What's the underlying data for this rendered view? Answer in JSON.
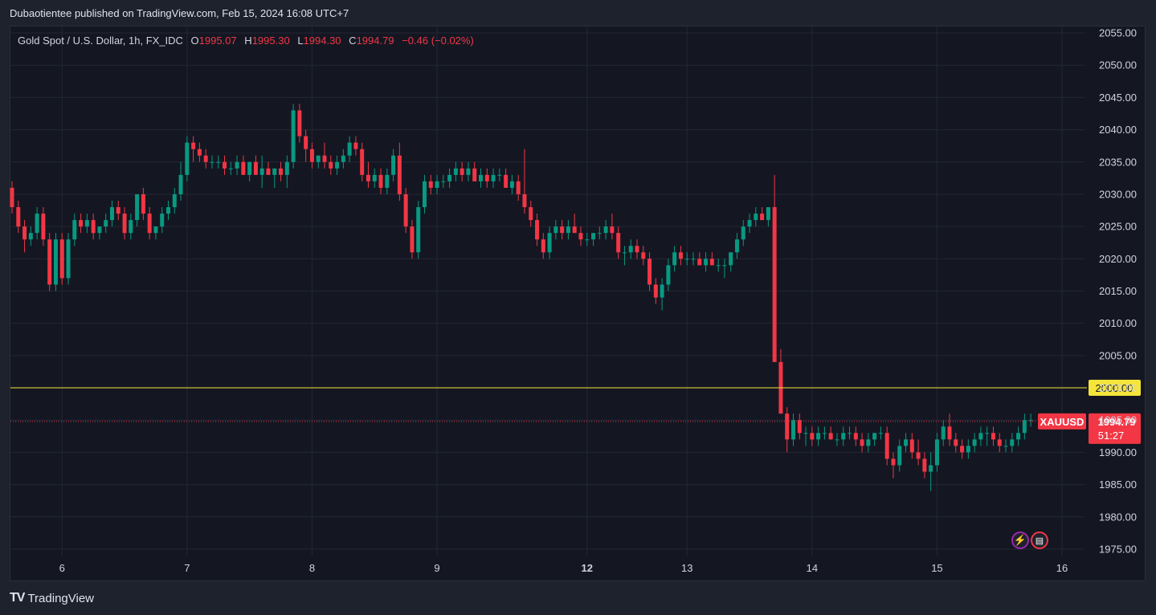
{
  "header": {
    "published_text": "Dubaotientee published on TradingView.com, Feb 15, 2024 16:08 UTC+7"
  },
  "legend": {
    "symbol": "Gold Spot / U.S. Dollar, 1h, FX_IDC",
    "o_label": "O",
    "o_value": "1995.07",
    "h_label": "H",
    "h_value": "1995.30",
    "l_label": "L",
    "l_value": "1994.30",
    "c_label": "C",
    "c_value": "1994.79",
    "change": "−0.46 (−0.02%)"
  },
  "footer": {
    "brand": "TradingView",
    "logo": "TV"
  },
  "icons": [
    "lightning-icon",
    "us-flag-icon"
  ],
  "colors": {
    "up": "#089981",
    "down": "#f23645",
    "level_line": "#f5e43a",
    "background": "#141722"
  },
  "chart_data": {
    "type": "candlestick",
    "symbol": "XAUUSD",
    "timeframe": "1h",
    "ylim": [
      1974,
      2056
    ],
    "y_ticks": [
      "2055.00",
      "2050.00",
      "2045.00",
      "2040.00",
      "2035.00",
      "2030.00",
      "2025.00",
      "2020.00",
      "2015.00",
      "2010.00",
      "2005.00",
      "2000.00",
      "1995.00",
      "1990.00",
      "1985.00",
      "1980.00",
      "1975.00"
    ],
    "x_ticks": [
      {
        "label": "6",
        "bar": 8,
        "bold": false
      },
      {
        "label": "7",
        "bar": 28,
        "bold": false
      },
      {
        "label": "8",
        "bar": 48,
        "bold": false
      },
      {
        "label": "9",
        "bar": 68,
        "bold": false
      },
      {
        "label": "12",
        "bar": 92,
        "bold": true
      },
      {
        "label": "13",
        "bar": 108,
        "bold": false
      },
      {
        "label": "14",
        "bar": 128,
        "bold": false
      },
      {
        "label": "15",
        "bar": 148,
        "bold": false
      },
      {
        "label": "16",
        "bar": 168,
        "bold": false
      }
    ],
    "horizontal_line": {
      "value": 2000.0,
      "label": "2000.00"
    },
    "last_price": {
      "value": 1994.79,
      "label": "1994.79",
      "countdown": "51:27",
      "symbol_label": "XAUUSD"
    },
    "candles": [
      [
        2031,
        2032,
        2027,
        2028
      ],
      [
        2028,
        2029,
        2024,
        2025
      ],
      [
        2025,
        2026,
        2021,
        2023
      ],
      [
        2023,
        2025,
        2022,
        2024
      ],
      [
        2024,
        2028,
        2023,
        2027
      ],
      [
        2027,
        2028,
        2022,
        2023
      ],
      [
        2023,
        2024,
        2015,
        2016
      ],
      [
        2016,
        2024,
        2015,
        2023
      ],
      [
        2023,
        2024,
        2016,
        2017
      ],
      [
        2017,
        2024,
        2016,
        2023
      ],
      [
        2023,
        2027,
        2022,
        2026
      ],
      [
        2026,
        2027,
        2024,
        2025
      ],
      [
        2025,
        2027,
        2024,
        2026
      ],
      [
        2026,
        2027,
        2023,
        2024
      ],
      [
        2024,
        2025,
        2023,
        2025
      ],
      [
        2025,
        2027,
        2024,
        2026
      ],
      [
        2026,
        2029,
        2025,
        2028
      ],
      [
        2028,
        2029,
        2026,
        2027
      ],
      [
        2027,
        2028,
        2023,
        2024
      ],
      [
        2024,
        2027,
        2023,
        2026
      ],
      [
        2026,
        2030,
        2025,
        2030
      ],
      [
        2030,
        2031,
        2026,
        2027
      ],
      [
        2027,
        2028,
        2023,
        2024
      ],
      [
        2024,
        2025,
        2023,
        2025
      ],
      [
        2025,
        2028,
        2024,
        2027
      ],
      [
        2027,
        2029,
        2026,
        2028
      ],
      [
        2028,
        2031,
        2027,
        2030
      ],
      [
        2030,
        2035,
        2029,
        2033
      ],
      [
        2033,
        2039,
        2032,
        2038
      ],
      [
        2038,
        2039,
        2035,
        2037
      ],
      [
        2037,
        2038,
        2035,
        2036
      ],
      [
        2036,
        2037,
        2034,
        2035
      ],
      [
        2035,
        2036,
        2034,
        2035
      ],
      [
        2035,
        2036,
        2034,
        2035
      ],
      [
        2035,
        2036,
        2033,
        2034
      ],
      [
        2034,
        2035,
        2033,
        2034
      ],
      [
        2034,
        2036,
        2033,
        2035
      ],
      [
        2035,
        2036,
        2033,
        2033
      ],
      [
        2033,
        2035,
        2032,
        2035
      ],
      [
        2035,
        2036,
        2033,
        2033
      ],
      [
        2033,
        2036,
        2031,
        2034
      ],
      [
        2034,
        2035,
        2033,
        2033
      ],
      [
        2033,
        2034,
        2031,
        2034
      ],
      [
        2034,
        2035,
        2032,
        2033
      ],
      [
        2033,
        2036,
        2031,
        2035
      ],
      [
        2035,
        2044,
        2034,
        2043
      ],
      [
        2043,
        2044,
        2038,
        2039
      ],
      [
        2039,
        2040,
        2035,
        2037
      ],
      [
        2037,
        2038,
        2034,
        2035
      ],
      [
        2035,
        2036,
        2034,
        2036
      ],
      [
        2036,
        2038,
        2034,
        2035
      ],
      [
        2035,
        2036,
        2033,
        2034
      ],
      [
        2034,
        2036,
        2033,
        2035
      ],
      [
        2035,
        2037,
        2034,
        2036
      ],
      [
        2036,
        2039,
        2035,
        2038
      ],
      [
        2038,
        2039,
        2036,
        2037
      ],
      [
        2037,
        2038,
        2032,
        2033
      ],
      [
        2033,
        2035,
        2031,
        2032
      ],
      [
        2032,
        2034,
        2031,
        2033
      ],
      [
        2033,
        2034,
        2030,
        2031
      ],
      [
        2031,
        2034,
        2030,
        2033
      ],
      [
        2033,
        2037,
        2032,
        2036
      ],
      [
        2036,
        2038,
        2029,
        2030
      ],
      [
        2030,
        2031,
        2024,
        2025
      ],
      [
        2025,
        2026,
        2020,
        2021
      ],
      [
        2021,
        2029,
        2020,
        2028
      ],
      [
        2028,
        2033,
        2027,
        2032
      ],
      [
        2032,
        2033,
        2030,
        2031
      ],
      [
        2031,
        2033,
        2030,
        2032
      ],
      [
        2032,
        2033,
        2031,
        2032
      ],
      [
        2032,
        2034,
        2031,
        2033
      ],
      [
        2033,
        2035,
        2032,
        2034
      ],
      [
        2034,
        2035,
        2032,
        2033
      ],
      [
        2033,
        2035,
        2032,
        2034
      ],
      [
        2034,
        2035,
        2032,
        2032
      ],
      [
        2032,
        2034,
        2031,
        2033
      ],
      [
        2033,
        2034,
        2031,
        2032
      ],
      [
        2032,
        2034,
        2031,
        2033
      ],
      [
        2033,
        2034,
        2032,
        2033
      ],
      [
        2033,
        2034,
        2031,
        2031
      ],
      [
        2031,
        2033,
        2030,
        2032
      ],
      [
        2032,
        2033,
        2029,
        2030
      ],
      [
        2030,
        2037,
        2027,
        2028
      ],
      [
        2028,
        2029,
        2025,
        2026
      ],
      [
        2026,
        2027,
        2022,
        2023
      ],
      [
        2023,
        2024,
        2020,
        2021
      ],
      [
        2021,
        2025,
        2020,
        2024
      ],
      [
        2024,
        2026,
        2023,
        2025
      ],
      [
        2025,
        2026,
        2023,
        2024
      ],
      [
        2024,
        2026,
        2023,
        2025
      ],
      [
        2025,
        2027,
        2024,
        2024
      ],
      [
        2024,
        2025,
        2022,
        2023
      ],
      [
        2023,
        2024,
        2022,
        2023
      ],
      [
        2023,
        2024,
        2022,
        2024
      ],
      [
        2024,
        2025,
        2023,
        2024
      ],
      [
        2024,
        2026,
        2023,
        2025
      ],
      [
        2025,
        2027,
        2023,
        2024
      ],
      [
        2024,
        2025,
        2020,
        2021
      ],
      [
        2021,
        2022,
        2019,
        2021
      ],
      [
        2021,
        2023,
        2020,
        2022
      ],
      [
        2022,
        2023,
        2020,
        2021
      ],
      [
        2021,
        2022,
        2019,
        2020
      ],
      [
        2020,
        2021,
        2015,
        2016
      ],
      [
        2016,
        2017,
        2013,
        2014
      ],
      [
        2014,
        2017,
        2012,
        2016
      ],
      [
        2016,
        2020,
        2015,
        2019
      ],
      [
        2019,
        2022,
        2018,
        2021
      ],
      [
        2021,
        2022,
        2019,
        2020
      ],
      [
        2020,
        2021,
        2019,
        2020
      ],
      [
        2020,
        2021,
        2019,
        2020
      ],
      [
        2020,
        2021,
        2019,
        2019
      ],
      [
        2019,
        2021,
        2018,
        2020
      ],
      [
        2020,
        2021,
        2019,
        2019
      ],
      [
        2019,
        2020,
        2018,
        2019
      ],
      [
        2019,
        2020,
        2017,
        2019
      ],
      [
        2019,
        2021,
        2018,
        2021
      ],
      [
        2021,
        2024,
        2020,
        2023
      ],
      [
        2023,
        2026,
        2022,
        2025
      ],
      [
        2025,
        2027,
        2024,
        2026
      ],
      [
        2026,
        2028,
        2025,
        2027
      ],
      [
        2027,
        2028,
        2026,
        2026
      ],
      [
        2026,
        2028,
        2025,
        2028
      ],
      [
        2028,
        2033,
        2004,
        2004
      ],
      [
        2004,
        2006,
        1996,
        1996
      ],
      [
        1996,
        1997,
        1990,
        1992
      ],
      [
        1992,
        1996,
        1991,
        1995
      ],
      [
        1995,
        1996,
        1992,
        1993
      ],
      [
        1993,
        1994,
        1991,
        1993
      ],
      [
        1993,
        1994,
        1991,
        1992
      ],
      [
        1992,
        1994,
        1991,
        1993
      ],
      [
        1993,
        1994,
        1992,
        1993
      ],
      [
        1993,
        1994,
        1992,
        1992
      ],
      [
        1992,
        1993,
        1991,
        1992
      ],
      [
        1992,
        1994,
        1991,
        1993
      ],
      [
        1993,
        1994,
        1992,
        1993
      ],
      [
        1993,
        1994,
        1991,
        1992
      ],
      [
        1992,
        1993,
        1990,
        1991
      ],
      [
        1991,
        1993,
        1990,
        1992
      ],
      [
        1992,
        1993,
        1991,
        1993
      ],
      [
        1993,
        1994,
        1992,
        1993
      ],
      [
        1993,
        1994,
        1988,
        1989
      ],
      [
        1989,
        1990,
        1986,
        1988
      ],
      [
        1988,
        1992,
        1987,
        1991
      ],
      [
        1991,
        1993,
        1990,
        1992
      ],
      [
        1992,
        1993,
        1989,
        1990
      ],
      [
        1990,
        1992,
        1988,
        1989
      ],
      [
        1989,
        1990,
        1986,
        1987
      ],
      [
        1987,
        1990,
        1984,
        1988
      ],
      [
        1988,
        1993,
        1987,
        1992
      ],
      [
        1992,
        1995,
        1991,
        1994
      ],
      [
        1994,
        1996,
        1991,
        1992
      ],
      [
        1992,
        1993,
        1990,
        1991
      ],
      [
        1991,
        1992,
        1989,
        1990
      ],
      [
        1990,
        1992,
        1989,
        1991
      ],
      [
        1991,
        1993,
        1990,
        1992
      ],
      [
        1992,
        1994,
        1991,
        1993
      ],
      [
        1993,
        1994,
        1991,
        1993
      ],
      [
        1993,
        1994,
        1991,
        1992
      ],
      [
        1992,
        1993,
        1990,
        1991
      ],
      [
        1991,
        1992,
        1990,
        1991
      ],
      [
        1991,
        1993,
        1990,
        1992
      ],
      [
        1992,
        1994,
        1991,
        1993
      ],
      [
        1993,
        1996,
        1992,
        1995
      ],
      [
        1995,
        1996,
        1994,
        1995
      ]
    ]
  }
}
